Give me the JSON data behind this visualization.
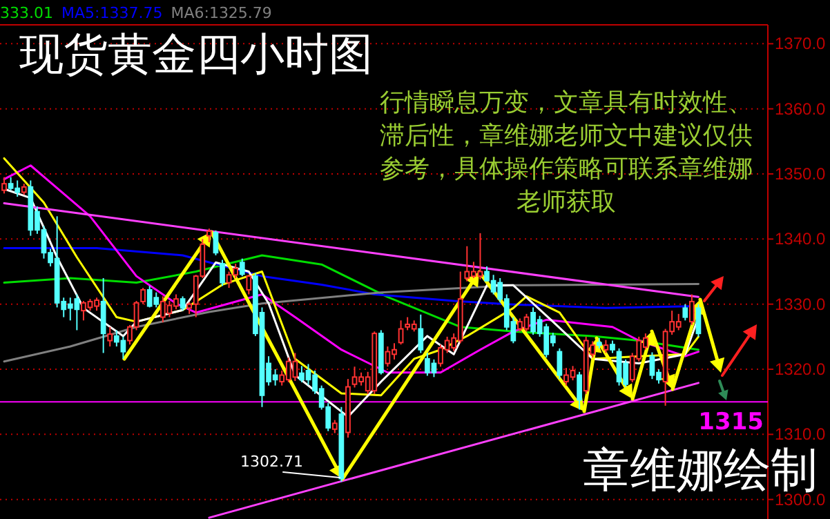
{
  "chart_data": {
    "type": "candlestick",
    "title": "现货黄金四小时图",
    "annotations": [
      "行情瞬息万变，文章具有时效性、滞后性，章维娜老师文中建议仅供参考，具体操作策略可联系章维娜老师获取",
      "章维娜绘制",
      "1302.71"
    ],
    "categories": [
      null,
      null,
      null,
      null,
      null,
      null,
      null,
      null,
      null,
      null,
      null,
      null,
      null,
      null,
      null,
      null,
      null,
      null,
      null,
      null,
      null,
      null,
      null,
      null,
      null,
      null,
      null,
      null,
      null,
      null,
      null,
      null,
      null,
      null,
      null,
      null,
      null,
      null,
      null,
      null,
      null,
      null,
      null,
      null,
      null,
      null,
      null,
      null,
      null,
      null,
      null,
      null,
      null,
      null,
      null,
      null,
      null,
      null,
      null,
      null,
      null,
      null,
      null,
      null,
      null,
      null,
      null,
      null,
      null,
      null,
      null,
      null,
      null,
      null,
      null,
      null,
      null,
      null,
      null,
      null,
      null,
      null,
      null,
      null,
      null,
      null,
      null,
      null,
      null,
      null,
      null,
      null,
      null,
      null,
      null,
      null,
      null,
      null,
      null,
      null,
      null,
      null,
      null,
      null,
      null,
      null
    ],
    "ohlc": [
      [
        1347.5,
        1349.5,
        1347,
        1348.5
      ],
      [
        1348.5,
        1349.5,
        1347.5,
        1347.8
      ],
      [
        1347.8,
        1349,
        1346.5,
        1347.2
      ],
      [
        1347.2,
        1348.5,
        1346.8,
        1348
      ],
      [
        1348,
        1349,
        1340.5,
        1341.4
      ],
      [
        1344.2,
        1345,
        1340.8,
        1341.4
      ],
      [
        1341.4,
        1342,
        1337,
        1337.9
      ],
      [
        1337.9,
        1338.5,
        1335.8,
        1336.4
      ],
      [
        1337,
        1343.5,
        1329.5,
        1330.2
      ],
      [
        1330.4,
        1331,
        1328,
        1329.2
      ],
      [
        1330,
        1331,
        1327.5,
        1329.4
      ],
      [
        1330.8,
        1331.5,
        1326,
        1329.2
      ],
      [
        1329,
        1330.5,
        1327.5,
        1330.2
      ],
      [
        1329.5,
        1330.8,
        1329,
        1330.4
      ],
      [
        1329.7,
        1331,
        1329,
        1330.6
      ],
      [
        1330.4,
        1334,
        1322.5,
        1325.5
      ],
      [
        1324.4,
        1326.5,
        1323.5,
        1325.4
      ],
      [
        1325.1,
        1326,
        1323.5,
        1324.2
      ],
      [
        1324.4,
        1325,
        1321.6,
        1322.7
      ],
      [
        1324.4,
        1326.8,
        1323.8,
        1326.5
      ],
      [
        1326.5,
        1330.5,
        1326,
        1330.2
      ],
      [
        1330.4,
        1332.5,
        1330,
        1332.2
      ],
      [
        1332.2,
        1332.8,
        1329.5,
        1329.7
      ],
      [
        1331,
        1331.8,
        1329.5,
        1330
      ],
      [
        1328,
        1331.2,
        1327.2,
        1330.4
      ],
      [
        1328.6,
        1330.5,
        1328,
        1329.8
      ],
      [
        1329.7,
        1331.5,
        1329.2,
        1330.8
      ],
      [
        1330.8,
        1331.2,
        1329,
        1329.4
      ],
      [
        1329.4,
        1330.3,
        1328.5,
        1330
      ],
      [
        1330,
        1334.5,
        1328,
        1334.3
      ],
      [
        1334.3,
        1340,
        1334,
        1339.2
      ],
      [
        1340.5,
        1341.6,
        1339.5,
        1341.2
      ],
      [
        1341,
        1341.3,
        1337.5,
        1337.9
      ],
      [
        1336.2,
        1336.8,
        1332.8,
        1333.3
      ],
      [
        1333.3,
        1335,
        1332.5,
        1334.5
      ],
      [
        1334.5,
        1336.2,
        1334,
        1335.5
      ],
      [
        1336.4,
        1337,
        1334.3,
        1334.6
      ],
      [
        1332.2,
        1334.5,
        1331.5,
        1334.3
      ],
      [
        1334.3,
        1334.8,
        1325.1,
        1325.5
      ],
      [
        1328.7,
        1329.5,
        1314.2,
        1316
      ],
      [
        1320.9,
        1322,
        1317.5,
        1318.1
      ],
      [
        1319.1,
        1320,
        1317.5,
        1318.4
      ],
      [
        1318.1,
        1319.8,
        1317.5,
        1319.1
      ],
      [
        1318.4,
        1321.8,
        1318,
        1321.2
      ],
      [
        1318.8,
        1322.5,
        1318.2,
        1321.2
      ],
      [
        1319.4,
        1320.5,
        1318,
        1318.4
      ],
      [
        1319.8,
        1320.8,
        1317.6,
        1318.4
      ],
      [
        1319.1,
        1319.8,
        1316.2,
        1316.7
      ],
      [
        1317,
        1317.5,
        1313.8,
        1314.2
      ],
      [
        1314.2,
        1314.8,
        1310.5,
        1311
      ],
      [
        1310.8,
        1312.2,
        1310.2,
        1311.7
      ],
      [
        1313.1,
        1314.2,
        1302.71,
        1303.2
      ],
      [
        1310.3,
        1318.5,
        1309.5,
        1317.3
      ],
      [
        1317.7,
        1320.4,
        1317.2,
        1318.8
      ],
      [
        1318.1,
        1319.5,
        1317.5,
        1318.8
      ],
      [
        1316.7,
        1319.6,
        1316.2,
        1318.8
      ],
      [
        1316.7,
        1325.8,
        1316.2,
        1325.5
      ],
      [
        1325.5,
        1326,
        1319.2,
        1319.5
      ],
      [
        1320.9,
        1323.5,
        1320.4,
        1322.7
      ],
      [
        1322.3,
        1324,
        1321.5,
        1323
      ],
      [
        1324.1,
        1327.5,
        1323.8,
        1326.2
      ],
      [
        1326.5,
        1328,
        1326,
        1326.9
      ],
      [
        1326.2,
        1327.5,
        1325.8,
        1326.9
      ],
      [
        1326.2,
        1328.4,
        1322.5,
        1323
      ],
      [
        1321.6,
        1322.5,
        1319,
        1319.5
      ],
      [
        1320.9,
        1321.5,
        1318.8,
        1319.5
      ],
      [
        1320.9,
        1323.8,
        1320.4,
        1323.3
      ],
      [
        1323,
        1325,
        1322.5,
        1324.4
      ],
      [
        1323.3,
        1325.5,
        1322.8,
        1324.8
      ],
      [
        1324.4,
        1335,
        1324,
        1330.8
      ],
      [
        1334,
        1338.9,
        1333.5,
        1335
      ],
      [
        1334.3,
        1336.5,
        1334,
        1335
      ],
      [
        1334.3,
        1340.9,
        1333.8,
        1335
      ],
      [
        1335,
        1335.8,
        1333.5,
        1333.6
      ],
      [
        1333.6,
        1334.5,
        1331.5,
        1331.9
      ],
      [
        1333.3,
        1334,
        1330.3,
        1330.8
      ],
      [
        1330.8,
        1331.5,
        1326,
        1326.5
      ],
      [
        1327.3,
        1328,
        1324,
        1324.4
      ],
      [
        1326.2,
        1327.8,
        1325.8,
        1327.3
      ],
      [
        1326.2,
        1328.5,
        1325.8,
        1328
      ],
      [
        1328.7,
        1329.5,
        1325.3,
        1325.8
      ],
      [
        1327.6,
        1328.2,
        1325,
        1325.5
      ],
      [
        1326.5,
        1327,
        1321.8,
        1322.3
      ],
      [
        1325.1,
        1325.6,
        1323.5,
        1324.1
      ],
      [
        1322.7,
        1323.2,
        1318.5,
        1319.1
      ],
      [
        1318.1,
        1320.2,
        1317.5,
        1319.1
      ],
      [
        1318.8,
        1320.5,
        1318.3,
        1319.8
      ],
      [
        1319.1,
        1319.6,
        1313.8,
        1315.3
      ],
      [
        1316.7,
        1325,
        1316.2,
        1324.4
      ],
      [
        1322.3,
        1324.3,
        1321.8,
        1323.7
      ],
      [
        1324.1,
        1324.8,
        1323.2,
        1323.7
      ],
      [
        1323,
        1324.5,
        1322.5,
        1323.7
      ],
      [
        1323.8,
        1324.4,
        1322.5,
        1323
      ],
      [
        1322.7,
        1323.2,
        1317.5,
        1318.1
      ],
      [
        1320.9,
        1321.5,
        1317.3,
        1317.7
      ],
      [
        1318.4,
        1322.5,
        1318,
        1322
      ],
      [
        1321.6,
        1325,
        1321.2,
        1324.4
      ],
      [
        1323.4,
        1325.5,
        1323,
        1324.8
      ],
      [
        1322,
        1322.6,
        1318.5,
        1319.1
      ],
      [
        1319.5,
        1320,
        1317.8,
        1318.4
      ],
      [
        1318.1,
        1326.2,
        1314.4,
        1325.8
      ],
      [
        1325.8,
        1329,
        1325.3,
        1327.3
      ],
      [
        1326.5,
        1328.5,
        1326,
        1327.3
      ],
      [
        1329.4,
        1330,
        1327.5,
        1328
      ],
      [
        1327.3,
        1331.5,
        1326.8,
        1330.4
      ],
      [
        1329.4,
        1330,
        1325,
        1325.5
      ]
    ],
    "colors": [
      "#ff3232",
      "#54ffff",
      "#54ffff",
      "#ff3232",
      "#54ffff",
      "#54ffff",
      "#54ffff",
      "#54ffff",
      "#54ffff",
      "#54ffff",
      "#54ffff",
      "#54ffff",
      "#ff3232",
      "#ff3232",
      "#ff3232",
      "#54ffff",
      "#ff3232",
      "#54ffff",
      "#54ffff",
      "#ff3232",
      "#ff3232",
      "#ff3232",
      "#54ffff",
      "#54ffff",
      "#ff3232",
      "#ff3232",
      "#ff3232",
      "#54ffff",
      "#ff3232",
      "#ff3232",
      "#ff3232",
      "#ff3232",
      "#54ffff",
      "#54ffff",
      "#ff3232",
      "#ff3232",
      "#54ffff",
      "#ff3232",
      "#54ffff",
      "#54ffff",
      "#54ffff",
      "#54ffff",
      "#ff3232",
      "#ff3232",
      "#ff3232",
      "#54ffff",
      "#54ffff",
      "#54ffff",
      "#54ffff",
      "#54ffff",
      "#ff3232",
      "#54ffff",
      "#ff3232",
      "#ff3232",
      "#ff3232",
      "#ff3232",
      "#ff3232",
      "#54ffff",
      "#ff3232",
      "#ff3232",
      "#ff3232",
      "#ff3232",
      "#ff3232",
      "#54ffff",
      "#54ffff",
      "#54ffff",
      "#ff3232",
      "#ff3232",
      "#ff3232",
      "#ff3232",
      "#ff3232",
      "#ff3232",
      "#ff3232",
      "#54ffff",
      "#54ffff",
      "#54ffff",
      "#54ffff",
      "#54ffff",
      "#ff3232",
      "#ff3232",
      "#54ffff",
      "#54ffff",
      "#54ffff",
      "#54ffff",
      "#54ffff",
      "#ff3232",
      "#ff3232",
      "#54ffff",
      "#ff3232",
      "#ff3232",
      "#54ffff",
      "#ff3232",
      "#54ffff",
      "#54ffff",
      "#54ffff",
      "#ff3232",
      "#ff3232",
      "#ff3232",
      "#54ffff",
      "#54ffff",
      "#ff3232",
      "#ff3232",
      "#ff3232",
      "#54ffff",
      "#ff3232",
      "#54ffff"
    ],
    "series": [
      {
        "name": "333.01",
        "type": "line",
        "color": "#00dd00",
        "values": [
          1333.3,
          null,
          null,
          null,
          null,
          null,
          null,
          null,
          null,
          null,
          1334,
          null,
          null,
          null,
          null,
          null,
          null,
          null,
          null,
          null,
          1333.3,
          null,
          null,
          null,
          null,
          null,
          null,
          null,
          null,
          1335,
          null,
          null,
          null,
          null,
          null,
          null,
          null,
          null,
          null,
          1337.5,
          null,
          null,
          null,
          null,
          null,
          null,
          null,
          null,
          1336.1,
          null,
          null,
          null,
          null,
          null,
          null,
          null,
          null,
          null,
          1331.1,
          null,
          null,
          null,
          null,
          null,
          null,
          null,
          null,
          null,
          null,
          1326.5,
          null,
          null,
          null,
          null,
          null,
          null,
          null,
          1325.8,
          null,
          null,
          null,
          null,
          null,
          null,
          null,
          null,
          null,
          null,
          null,
          1325.1,
          null,
          null,
          null,
          null,
          null,
          null,
          1324.4,
          null,
          null,
          null,
          null,
          null,
          null,
          null,
          null,
          1323
        ]
      },
      {
        "name": "MA5:1337.75",
        "type": "line",
        "color": "#0000ff",
        "values": [
          1338.6,
          null,
          null,
          null,
          null,
          null,
          null,
          null,
          null,
          null,
          null,
          null,
          null,
          null,
          1338.6,
          null,
          null,
          null,
          null,
          null,
          null,
          null,
          null,
          null,
          null,
          null,
          null,
          1337.5,
          null,
          null,
          null,
          null,
          null,
          null,
          null,
          null,
          null,
          null,
          null,
          1334.3,
          null,
          null,
          null,
          null,
          null,
          null,
          null,
          null,
          1333,
          null,
          null,
          null,
          null,
          null,
          null,
          null,
          1331.5,
          null,
          null,
          null,
          null,
          null,
          null,
          null,
          null,
          null,
          null,
          null,
          1330.5,
          null,
          null,
          null,
          null,
          null,
          null,
          null,
          1330,
          null,
          null,
          null,
          null,
          null,
          null,
          null,
          null,
          null,
          null,
          null,
          null,
          null,
          null,
          1329.4,
          null,
          null,
          null,
          null,
          null,
          null,
          null,
          null,
          null,
          null,
          null,
          null,
          null,
          1329.7
        ]
      },
      {
        "name": "MA6:1325.79",
        "type": "line",
        "color": "#808080",
        "values": [
          1321.2,
          null,
          null,
          null,
          null,
          null,
          null,
          null,
          null,
          null,
          1323.5,
          null,
          null,
          null,
          null,
          null,
          null,
          null,
          null,
          null,
          1326.5,
          null,
          null,
          null,
          null,
          null,
          null,
          null,
          null,
          null,
          null,
          1328.8,
          null,
          null,
          null,
          null,
          null,
          null,
          null,
          1330.1,
          null,
          null,
          null,
          null,
          null,
          null,
          null,
          null,
          null,
          null,
          null,
          null,
          null,
          null,
          null,
          null,
          null,
          1331.8,
          null,
          null,
          null,
          null,
          null,
          null,
          null,
          null,
          null,
          null,
          null,
          null,
          null,
          null,
          null,
          null,
          null,
          null,
          null,
          1332.9,
          null,
          null,
          null,
          null,
          null,
          null,
          null,
          null,
          null,
          null,
          null,
          null,
          null,
          null,
          null,
          null,
          null,
          null,
          null,
          null,
          null,
          null,
          null,
          null,
          null,
          null,
          null,
          1333.1
        ]
      },
      {
        "type": "line",
        "color": "#ff00ff",
        "values": [
          1349.2,
          null,
          null,
          null,
          1351.3,
          null,
          null,
          null,
          null,
          null,
          null,
          null,
          null,
          1343.5,
          null,
          null,
          null,
          null,
          null,
          null,
          1334.3,
          null,
          null,
          null,
          null,
          null,
          1330.1,
          null,
          null,
          1328.7,
          null,
          null,
          null,
          null,
          1330.1,
          null,
          null,
          null,
          null,
          1331.5,
          null,
          null,
          null,
          null,
          1328,
          null,
          null,
          null,
          null,
          null,
          null,
          1323,
          null,
          null,
          null,
          null,
          null,
          null,
          1319.5,
          null,
          null,
          null,
          null,
          null,
          null,
          null,
          1319.5,
          null,
          null,
          null,
          null,
          null,
          1323,
          null,
          null,
          null,
          null,
          1325.8,
          null,
          null,
          null,
          null,
          1327.6,
          null,
          null,
          null,
          null,
          null,
          null,
          null,
          null,
          null,
          1326.5,
          null,
          null,
          null,
          1324.4,
          null,
          null,
          null,
          null,
          null,
          null,
          1322,
          null,
          1322.7
        ]
      },
      {
        "type": "line",
        "color": "#ffff00",
        "values": [
          1352.4,
          null,
          null,
          null,
          null,
          null,
          1345.6,
          null,
          null,
          null,
          null,
          1337.2,
          null,
          null,
          null,
          null,
          null,
          1328,
          null,
          null,
          1327.3,
          null,
          null,
          null,
          null,
          null,
          null,
          1329.1,
          null,
          null,
          null,
          null,
          null,
          1333,
          null,
          null,
          null,
          null,
          null,
          1335,
          null,
          null,
          null,
          null,
          1321.6,
          null,
          null,
          null,
          null,
          null,
          null,
          1316.3,
          null,
          null,
          null,
          null,
          null,
          1316,
          null,
          null,
          null,
          null,
          1321.6,
          null,
          null,
          null,
          1323,
          null,
          null,
          null,
          1325.1,
          null,
          null,
          null,
          null,
          null,
          null,
          1329.4,
          null,
          1331.2,
          null,
          null,
          null,
          null,
          1328.7,
          null,
          null,
          null,
          null,
          1321.6,
          null,
          null,
          null,
          null,
          null,
          null,
          1322,
          null,
          null,
          null,
          null,
          null,
          null,
          1322.3,
          null,
          1325
        ]
      },
      {
        "type": "line",
        "color": "#ffffff",
        "values": [
          1347.7,
          null,
          null,
          null,
          1346.3,
          null,
          null,
          null,
          1337.2,
          null,
          null,
          null,
          1329.4,
          null,
          null,
          null,
          null,
          null,
          1325.1,
          null,
          1327.3,
          null,
          null,
          null,
          null,
          null,
          null,
          1329.1,
          null,
          null,
          null,
          null,
          1336.4,
          null,
          null,
          null,
          null,
          1335,
          null,
          null,
          1330.1,
          null,
          null,
          null,
          1319.1,
          null,
          null,
          null,
          null,
          null,
          null,
          null,
          1312.7,
          null,
          null,
          null,
          null,
          1318.1,
          null,
          null,
          null,
          null,
          null,
          null,
          1325.1,
          null,
          null,
          null,
          1322.3,
          null,
          null,
          null,
          null,
          1332.9,
          null,
          null,
          null,
          1332.9,
          null,
          null,
          null,
          null,
          null,
          1327.3,
          null,
          null,
          null,
          null,
          null,
          1321.6,
          null,
          null,
          null,
          null,
          null,
          null,
          1320.9,
          null,
          null,
          null,
          null,
          null,
          null,
          1322.3,
          null,
          1328
        ]
      },
      {
        "type": "line",
        "color": "#ff40ff",
        "values": [
          1345.5,
          null,
          null,
          null,
          null,
          null,
          null,
          null,
          null,
          null,
          null,
          null,
          null,
          null,
          null,
          null,
          null,
          null,
          null,
          null,
          null,
          null,
          null,
          null,
          null,
          null,
          null,
          null,
          null,
          null,
          null,
          null,
          null,
          null,
          null,
          null,
          null,
          null,
          null,
          null,
          null,
          null,
          null,
          null,
          null,
          null,
          null,
          null,
          null,
          null,
          null,
          null,
          null,
          null,
          null,
          null,
          null,
          null,
          null,
          null,
          null,
          null,
          null,
          null,
          null,
          null,
          null,
          null,
          null,
          null,
          null,
          null,
          null,
          null,
          null,
          null,
          null,
          null,
          null,
          null,
          null,
          null,
          null,
          null,
          null,
          null,
          null,
          null,
          null,
          null,
          null,
          null,
          null,
          null,
          null,
          null,
          null,
          null,
          null,
          null,
          null,
          null,
          null,
          null,
          null,
          1331.1
        ]
      },
      {
        "type": "line",
        "color": "#ff40ff",
        "values": [
          null,
          null,
          null,
          null,
          null,
          null,
          null,
          null,
          null,
          null,
          null,
          null,
          null,
          null,
          null,
          null,
          null,
          null,
          null,
          null,
          null,
          null,
          null,
          null,
          null,
          null,
          null,
          null,
          null,
          null,
          null,
          1297.2,
          null,
          null,
          null,
          null,
          null,
          null,
          null,
          null,
          null,
          null,
          null,
          null,
          null,
          null,
          null,
          null,
          null,
          null,
          null,
          null,
          null,
          null,
          null,
          null,
          null,
          null,
          null,
          null,
          null,
          null,
          null,
          null,
          null,
          null,
          null,
          null,
          null,
          null,
          null,
          null,
          null,
          null,
          null,
          null,
          null,
          null,
          null,
          null,
          null,
          null,
          null,
          null,
          null,
          null,
          null,
          null,
          null,
          null,
          null,
          null,
          null,
          null,
          null,
          null,
          null,
          null,
          null,
          null,
          null,
          null,
          null,
          null,
          null,
          1317.9
        ]
      }
    ],
    "ref_lines": [
      {
        "axis": "y",
        "value": 1315,
        "label": "1315",
        "color": "#ff00ff"
      }
    ],
    "ylim": [
      1297,
      1372.9
    ],
    "yticks": [
      {
        "value": 1300,
        "label": "1300.0"
      },
      {
        "value": 1310,
        "label": "1310.0"
      },
      {
        "value": 1320,
        "label": "1320.0"
      },
      {
        "value": 1330,
        "label": "1330.0"
      },
      {
        "value": 1340,
        "label": "1340.0"
      },
      {
        "value": 1350,
        "label": "1350.0"
      },
      {
        "value": 1360,
        "label": "1360.0"
      },
      {
        "value": 1370,
        "label": "1370.0"
      }
    ],
    "grid": "y",
    "legend": "top left",
    "tick_labels": "y"
  }
}
